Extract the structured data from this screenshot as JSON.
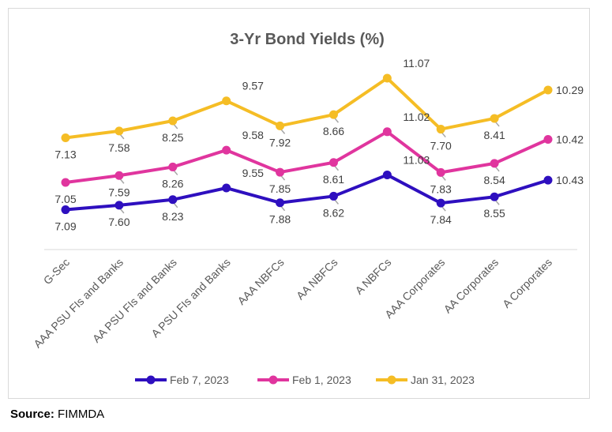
{
  "chart_data": {
    "type": "line",
    "title": "3-Yr Bond Yields (%)",
    "xlabel": "",
    "ylabel": "",
    "categories": [
      "G-Sec",
      "AAA PSU FIs and Banks",
      "AA PSU FIs and Banks",
      "A PSU FIs and Banks",
      "AAA NBFCs",
      "AA NBFCs",
      "A NBFCs",
      "AAA Corporates",
      "AA Corporates",
      "A Corporates"
    ],
    "series": [
      {
        "name": "Feb 7, 2023",
        "color": "#2e0fbf",
        "values": [
          7.09,
          7.6,
          8.23,
          9.55,
          7.88,
          8.62,
          11.03,
          7.84,
          8.55,
          10.43
        ],
        "labels": [
          "7.09",
          "7.60",
          "8.23",
          "9.55",
          "7.88",
          "8.62",
          "11.03",
          "7.84",
          "8.55",
          "10.43"
        ]
      },
      {
        "name": "Feb 1, 2023",
        "color": "#e0359e",
        "values": [
          7.05,
          7.59,
          8.26,
          9.58,
          7.85,
          8.61,
          11.02,
          7.83,
          8.54,
          10.42
        ],
        "labels": [
          "7.05",
          "7.59",
          "8.26",
          "9.58",
          "7.85",
          "8.61",
          "11.02",
          "7.83",
          "8.54",
          "10.42"
        ]
      },
      {
        "name": "Jan 31, 2023",
        "color": "#f5bd25",
        "values": [
          7.13,
          7.58,
          8.25,
          9.57,
          7.92,
          8.66,
          11.07,
          7.7,
          8.41,
          10.29
        ],
        "labels": [
          "7.13",
          "7.58",
          "8.25",
          "9.57",
          "7.92",
          "8.66",
          "11.07",
          "7.70",
          "8.41",
          "10.29"
        ]
      }
    ],
    "gridlines": false,
    "data_labels": true,
    "legend_position": "bottom"
  },
  "source": {
    "label": "Source:",
    "value": "FIMMDA"
  }
}
